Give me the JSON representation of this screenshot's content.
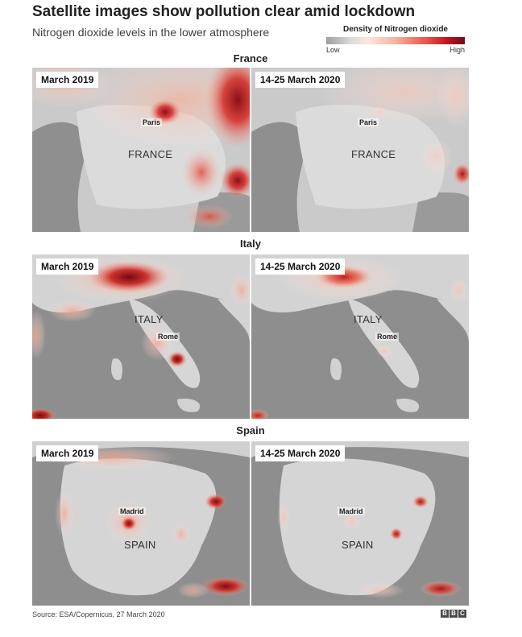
{
  "header": {
    "title": "Satellite images show pollution clear amid lockdown",
    "subtitle": "Nitrogen dioxide levels in the lower atmosphere"
  },
  "legend": {
    "title": "Density of Nitrogen dioxide",
    "low_label": "Low",
    "high_label": "High",
    "colors": [
      "#9e9e9e",
      "#dcdcdc",
      "#f6b29f",
      "#e8554a",
      "#c1121f",
      "#6b0d12"
    ]
  },
  "sections": [
    {
      "title": "France",
      "country_label": "FRANCE",
      "city_label": "Paris",
      "panels": [
        {
          "date": "March 2019",
          "pollution_level": "high"
        },
        {
          "date": "14-25 March 2020",
          "pollution_level": "low"
        }
      ]
    },
    {
      "title": "Italy",
      "country_label": "ITALY",
      "city_label": "Rome",
      "panels": [
        {
          "date": "March 2019",
          "pollution_level": "high"
        },
        {
          "date": "14-25 March 2020",
          "pollution_level": "low"
        }
      ]
    },
    {
      "title": "Spain",
      "country_label": "SPAIN",
      "city_label": "Madrid",
      "panels": [
        {
          "date": "March 2019",
          "pollution_level": "high"
        },
        {
          "date": "14-25 March 2020",
          "pollution_level": "low"
        }
      ]
    }
  ],
  "footer": {
    "source": "Source: ESA/Copernicus, 27 March 2020",
    "logo": [
      "B",
      "B",
      "C"
    ]
  }
}
